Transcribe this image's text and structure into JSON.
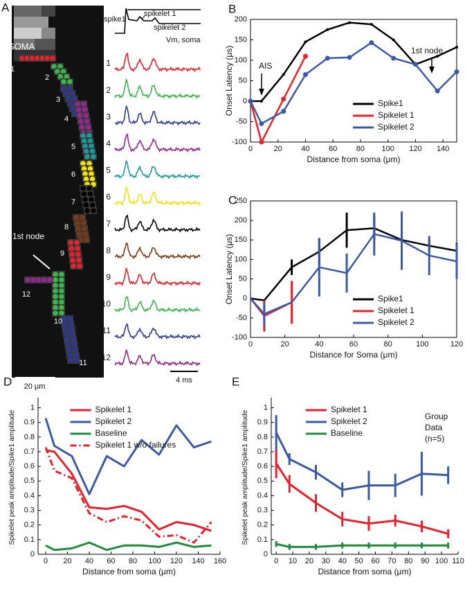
{
  "panel_a": {
    "panel": "A",
    "soma_label": "SOMA",
    "node_label": "1st node",
    "segments": [
      {
        "label": "1",
        "color": "#e8202a"
      },
      {
        "label": "2",
        "color": "#3ab54a"
      },
      {
        "label": "3",
        "color": "#2b3990"
      },
      {
        "label": "4",
        "color": "#92278f"
      },
      {
        "label": "5",
        "color": "#1a9a9a"
      },
      {
        "label": "6",
        "color": "#f2e20c"
      },
      {
        "label": "7",
        "color": "#000000"
      },
      {
        "label": "8",
        "color": "#7b3a12"
      },
      {
        "label": "9",
        "color": "#e8202a"
      },
      {
        "label": "10",
        "color": "#3ab54a"
      },
      {
        "label": "11",
        "color": "#2b3990"
      },
      {
        "label": "12",
        "color": "#92278f"
      }
    ],
    "scale_bar": "20 μm",
    "top_trace_labels": [
      "spike1",
      "spikelet 1",
      "spikelet 2",
      "Vm, soma"
    ],
    "time_bar": "4 ms"
  },
  "chart_data": [
    {
      "type": "line",
      "panel": "B",
      "x_label": "Distance from soma (μm)",
      "y_label": "Onset Latency (μs)",
      "xlim": [
        0,
        150
      ],
      "xticks": [
        0,
        20,
        40,
        60,
        80,
        100,
        120,
        140
      ],
      "ylim": [
        -100,
        200
      ],
      "yticks": [
        -100,
        -50,
        0,
        50,
        100,
        150,
        200
      ],
      "frame": true,
      "markers": true,
      "legend": "lower right",
      "annotations": [
        "AIS",
        "1st node"
      ],
      "series": [
        {
          "name": "Spike1",
          "color": "#000000",
          "x": [
            0,
            8,
            24,
            40,
            56,
            72,
            88,
            104,
            120,
            136,
            150
          ],
          "values": [
            0,
            0,
            65,
            145,
            175,
            192,
            188,
            150,
            90,
            110,
            132
          ]
        },
        {
          "name": "Spikelet 1",
          "color": "#e8202a",
          "x": [
            0,
            8,
            24,
            40
          ],
          "values": [
            0,
            -100,
            5,
            110
          ]
        },
        {
          "name": "Spikelet 2",
          "color": "#3a5aa8",
          "x": [
            0,
            8,
            24,
            40,
            56,
            72,
            88,
            104,
            120,
            136,
            150
          ],
          "values": [
            0,
            -55,
            -25,
            65,
            105,
            107,
            143,
            105,
            90,
            25,
            72
          ]
        }
      ]
    },
    {
      "type": "line",
      "panel": "C",
      "x_label": "Distance for Soma (μm)",
      "y_label": "Onset Latency (μs)",
      "xlim": [
        0,
        120
      ],
      "xticks": [
        0,
        20,
        40,
        60,
        80,
        100,
        120
      ],
      "ylim": [
        -100,
        250
      ],
      "yticks": [
        -100,
        -50,
        0,
        50,
        100,
        150,
        200,
        250
      ],
      "frame": true,
      "markers": false,
      "legend": "lower right",
      "series": [
        {
          "name": "Spike1",
          "color": "#000000",
          "x": [
            0,
            8,
            24,
            40,
            56,
            72,
            88,
            104,
            120
          ],
          "values": [
            0,
            -5,
            80,
            120,
            175,
            180,
            150,
            135,
            122
          ],
          "errors": [
            0,
            0,
            20,
            35,
            45,
            30,
            20,
            15,
            20
          ]
        },
        {
          "name": "Spikelet 1",
          "color": "#e8202a",
          "x": [
            0,
            8,
            24
          ],
          "values": [
            0,
            -45,
            -10
          ],
          "errors": [
            0,
            40,
            55
          ]
        },
        {
          "name": "Spikelet 2",
          "color": "#3a5aa8",
          "x": [
            0,
            8,
            24,
            40,
            56,
            72,
            88,
            104,
            120
          ],
          "values": [
            0,
            -40,
            -10,
            80,
            65,
            165,
            148,
            110,
            95
          ],
          "errors": [
            0,
            30,
            0,
            75,
            50,
            55,
            75,
            50,
            45
          ]
        }
      ]
    },
    {
      "type": "line",
      "panel": "D",
      "x_label": "Distance from soma (μm)",
      "y_label": "Spikelet peak amplitude/Spike1 amplitude",
      "xlim": [
        -7,
        160
      ],
      "xticks": [
        0,
        20,
        40,
        60,
        80,
        100,
        120,
        140,
        160
      ],
      "ylim": [
        0,
        1.05
      ],
      "yticks": [
        0,
        0.1,
        0.2,
        0.3,
        0.4,
        0.5,
        0.6,
        0.7,
        0.8,
        0.9,
        1
      ],
      "frame": false,
      "markers": false,
      "legend": "upper center",
      "series": [
        {
          "name": "Spikelet 1",
          "color": "#e8202a",
          "x": [
            0,
            8,
            24,
            40,
            56,
            72,
            88,
            104,
            120,
            136,
            152
          ],
          "values": [
            0.71,
            0.7,
            0.55,
            0.32,
            0.31,
            0.33,
            0.29,
            0.17,
            0.22,
            0.2,
            0.16
          ]
        },
        {
          "name": "Spikelet 2",
          "color": "#3a5aa8",
          "x": [
            0,
            8,
            24,
            40,
            56,
            72,
            88,
            104,
            120,
            136,
            152
          ],
          "values": [
            0.93,
            0.74,
            0.67,
            0.41,
            0.67,
            0.6,
            0.78,
            0.68,
            0.88,
            0.73,
            0.77
          ]
        },
        {
          "name": "Baseline",
          "color": "#1e8a3c",
          "x": [
            0,
            8,
            24,
            40,
            56,
            72,
            88,
            104,
            120,
            136,
            152
          ],
          "values": [
            0.06,
            0.03,
            0.04,
            0.08,
            0.03,
            0.06,
            0.06,
            0.05,
            0.08,
            0.05,
            0.06
          ]
        },
        {
          "name": "Spikelet 1 w/o failures",
          "color": "#e8202a",
          "dashed": true,
          "x": [
            0,
            8,
            24,
            40,
            56,
            72,
            88,
            104,
            120,
            136,
            152
          ],
          "values": [
            0.73,
            0.57,
            0.52,
            0.28,
            0.22,
            0.26,
            0.23,
            0.12,
            0.13,
            0.08,
            0.22
          ]
        }
      ]
    },
    {
      "type": "line",
      "panel": "E",
      "x_label": "Distance from soma (μm)",
      "y_label": "Spikelet peak amplitude/Spike1 amplitude",
      "xlim": [
        -3,
        110
      ],
      "xticks": [
        0,
        10,
        20,
        30,
        40,
        50,
        60,
        70,
        80,
        90,
        100,
        110
      ],
      "ylim": [
        0,
        1.05
      ],
      "yticks": [
        0,
        0.1,
        0.2,
        0.3,
        0.4,
        0.5,
        0.6,
        0.7,
        0.8,
        0.9,
        1
      ],
      "frame": false,
      "markers": false,
      "legend": "upper center",
      "annotations": [
        "Group",
        "Data",
        "(n=5)"
      ],
      "series": [
        {
          "name": "Spikelet 1",
          "color": "#e8202a",
          "x": [
            0,
            8,
            24,
            40,
            56,
            72,
            88,
            104
          ],
          "values": [
            0.62,
            0.48,
            0.35,
            0.24,
            0.21,
            0.23,
            0.19,
            0.14
          ],
          "errors": [
            0.1,
            0.06,
            0.06,
            0.05,
            0.05,
            0.04,
            0.04,
            0.03
          ]
        },
        {
          "name": "Spikelet 2",
          "color": "#3a5aa8",
          "x": [
            0,
            8,
            24,
            40,
            56,
            72,
            88,
            104
          ],
          "values": [
            0.83,
            0.65,
            0.56,
            0.44,
            0.47,
            0.47,
            0.55,
            0.54
          ],
          "errors": [
            0.12,
            0.04,
            0.05,
            0.05,
            0.1,
            0.08,
            0.15,
            0.06
          ]
        },
        {
          "name": "Baseline",
          "color": "#1e8a3c",
          "x": [
            0,
            8,
            24,
            40,
            56,
            72,
            88,
            104
          ],
          "values": [
            0.07,
            0.05,
            0.05,
            0.06,
            0.06,
            0.06,
            0.06,
            0.06
          ],
          "errors": [
            0.02,
            0.02,
            0.02,
            0.02,
            0.02,
            0.02,
            0.02,
            0.02
          ]
        }
      ]
    }
  ]
}
